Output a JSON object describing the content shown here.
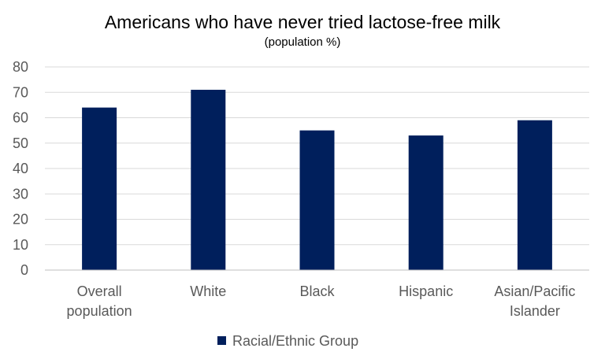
{
  "chart_data": {
    "type": "bar",
    "title": "Americans who have never tried lactose-free milk",
    "subtitle": "(population %)",
    "categories": [
      [
        "Overall",
        "population"
      ],
      [
        "White"
      ],
      [
        "Black"
      ],
      [
        "Hispanic"
      ],
      [
        "Asian/Pacific",
        "Islander"
      ]
    ],
    "series": [
      {
        "name": "Racial/Ethnic Group",
        "values": [
          64,
          71,
          55,
          53,
          59
        ],
        "color": "#001f5c"
      }
    ],
    "ylim": [
      0,
      80
    ],
    "yticks": [
      0,
      10,
      20,
      30,
      40,
      50,
      60,
      70,
      80
    ],
    "grid": true,
    "legend_position": "bottom"
  }
}
